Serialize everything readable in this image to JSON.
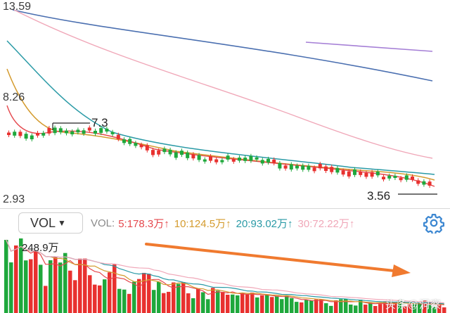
{
  "price_axis": {
    "top": "13.59",
    "mid": "8.26",
    "bottom": "2.93"
  },
  "annotations": {
    "high": "7.3",
    "low": "3.56"
  },
  "volume_panel": {
    "selector_label": "VOL",
    "indicator_name": "VOL:",
    "readouts": [
      {
        "label": "5:178.3万",
        "arrow": "↑",
        "color": "#e5484d"
      },
      {
        "label": "10:124.5万",
        "arrow": "↑",
        "color": "#d49b2e"
      },
      {
        "label": "20:93.02万",
        "arrow": "↑",
        "color": "#2a9aa6"
      },
      {
        "label": "30:72.22万",
        "arrow": "↑",
        "color": "#f0a7b8"
      }
    ],
    "max_label": "248.9万"
  },
  "icons": {
    "dropdown": "caret-down-icon",
    "settings": "gear-icon"
  },
  "colors": {
    "up": "#e8312f",
    "down": "#1fa83c",
    "ma5": "#e5484d",
    "ma10": "#d49b2e",
    "ma20": "#2a9aa6",
    "ma30": "#f0a7b8",
    "ma60": "#4a6fb0",
    "ma120": "#a57fd6",
    "trend_arrow": "#f07a2f",
    "settings": "#3a86d1"
  },
  "watermark": "头条@洞察"
}
